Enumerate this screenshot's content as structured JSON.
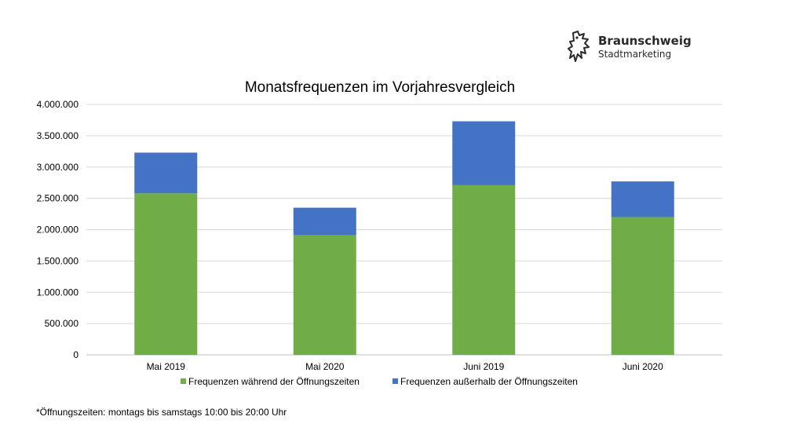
{
  "logo": {
    "title": "Braunschweig",
    "subtitle": "Stadtmarketing",
    "icon": "lion-icon"
  },
  "footnote": "*Öffnungszeiten:  montags bis samstags 10:00 bis 20:00 Uhr",
  "chart_data": {
    "type": "bar",
    "stacked": true,
    "title": "Monatsfrequenzen im Vorjahresvergleich",
    "xlabel": "",
    "ylabel": "",
    "categories": [
      "Mai 2019",
      "Mai 2020",
      "Juni 2019",
      "Juni 2020"
    ],
    "series": [
      {
        "name": "Frequenzen während der Öffnungszeiten",
        "color": "#70ad47",
        "values": [
          2580000,
          1910000,
          2710000,
          2200000
        ]
      },
      {
        "name": "Frequenzen außerhalb der Öffnungszeiten",
        "color": "#4472c4",
        "values": [
          650000,
          440000,
          1020000,
          570000
        ]
      }
    ],
    "ylim": [
      0,
      4000000
    ],
    "yticks": [
      0,
      500000,
      1000000,
      1500000,
      2000000,
      2500000,
      3000000,
      3500000,
      4000000
    ],
    "ytick_labels": [
      "0",
      "500.000",
      "1.000.000",
      "1.500.000",
      "2.000.000",
      "2.500.000",
      "3.000.000",
      "3.500.000",
      "4.000.000"
    ],
    "grid": true,
    "legend_position": "bottom"
  }
}
